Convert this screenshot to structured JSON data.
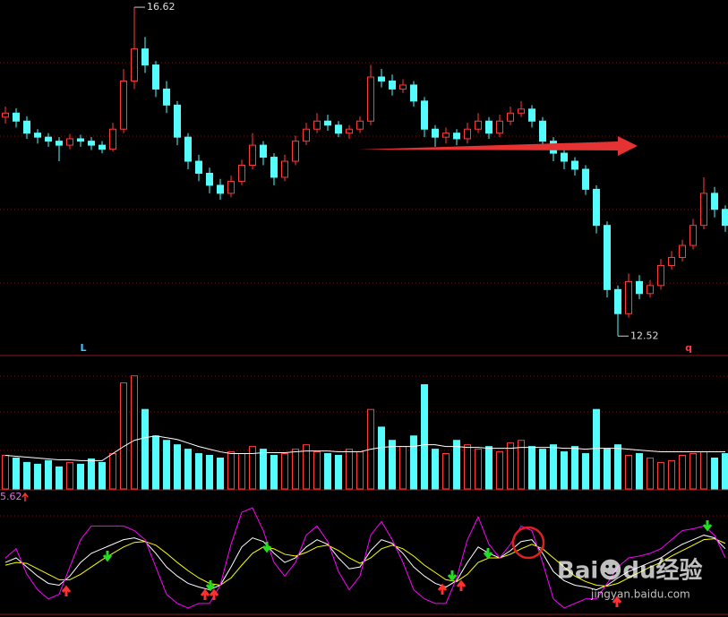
{
  "chart_data": [
    {
      "type": "candlestick",
      "open": [
        15.25,
        15.3,
        15.2,
        15.05,
        15.0,
        14.95,
        14.9,
        14.98,
        14.95,
        14.9,
        14.85,
        15.1,
        15.7,
        16.1,
        15.9,
        15.6,
        15.4,
        15.0,
        14.7,
        14.55,
        14.4,
        14.3,
        14.45,
        14.65,
        14.9,
        14.75,
        14.5,
        14.7,
        14.95,
        15.1,
        15.2,
        15.15,
        15.05,
        15.1,
        15.2,
        15.75,
        15.7,
        15.6,
        15.65,
        15.45,
        15.1,
        15.0,
        15.05,
        14.98,
        15.1,
        15.2,
        15.05,
        15.2,
        15.3,
        15.35,
        15.2,
        14.95,
        14.8,
        14.7,
        14.6,
        14.35,
        13.9,
        13.1,
        12.8,
        13.2,
        13.05,
        13.15,
        13.4,
        13.5,
        13.65,
        13.9,
        14.3,
        14.1
      ],
      "close": [
        15.3,
        15.2,
        15.05,
        15.0,
        14.95,
        14.9,
        14.98,
        14.95,
        14.9,
        14.85,
        15.1,
        15.7,
        16.1,
        15.9,
        15.6,
        15.4,
        15.0,
        14.7,
        14.55,
        14.4,
        14.3,
        14.45,
        14.65,
        14.9,
        14.75,
        14.5,
        14.7,
        14.95,
        15.1,
        15.2,
        15.15,
        15.05,
        15.1,
        15.2,
        15.75,
        15.7,
        15.6,
        15.65,
        15.45,
        15.1,
        15.0,
        15.05,
        14.98,
        15.1,
        15.2,
        15.05,
        15.2,
        15.3,
        15.35,
        15.2,
        14.95,
        14.8,
        14.7,
        14.6,
        14.35,
        13.9,
        13.1,
        12.8,
        13.2,
        13.05,
        13.15,
        13.4,
        13.5,
        13.65,
        13.9,
        14.3,
        14.1,
        13.9
      ],
      "high": [
        15.38,
        15.36,
        15.26,
        15.1,
        15.05,
        15.0,
        15.04,
        15.03,
        15.0,
        14.95,
        15.18,
        15.85,
        16.62,
        16.25,
        15.95,
        15.7,
        15.45,
        15.05,
        14.78,
        14.62,
        14.48,
        14.52,
        14.72,
        15.05,
        14.95,
        14.8,
        14.78,
        15.02,
        15.18,
        15.3,
        15.28,
        15.2,
        15.15,
        15.26,
        15.9,
        15.85,
        15.78,
        15.72,
        15.7,
        15.5,
        15.15,
        15.12,
        15.1,
        15.18,
        15.3,
        15.25,
        15.28,
        15.38,
        15.45,
        15.4,
        15.25,
        15.0,
        14.85,
        14.75,
        14.65,
        14.4,
        13.95,
        13.15,
        13.3,
        13.28,
        13.22,
        13.48,
        13.58,
        13.72,
        13.98,
        14.5,
        14.38,
        14.15
      ],
      "low": [
        15.17,
        15.12,
        14.98,
        14.92,
        14.88,
        14.7,
        14.85,
        14.88,
        14.84,
        14.8,
        14.82,
        15.05,
        15.6,
        15.8,
        15.5,
        15.3,
        14.9,
        14.6,
        14.45,
        14.3,
        14.22,
        14.25,
        14.4,
        14.6,
        14.65,
        14.4,
        14.45,
        14.65,
        14.9,
        15.05,
        15.08,
        15.0,
        14.98,
        15.05,
        15.15,
        15.62,
        15.52,
        15.55,
        15.38,
        15.0,
        14.88,
        14.92,
        14.9,
        14.92,
        15.05,
        14.98,
        15.0,
        15.15,
        15.25,
        15.12,
        14.88,
        14.7,
        14.6,
        14.52,
        14.28,
        13.8,
        13.0,
        12.52,
        12.75,
        12.98,
        13.0,
        13.1,
        13.35,
        13.45,
        13.6,
        13.85,
        14.0,
        13.82
      ],
      "up_color": "#ff3c3c",
      "down_color": "#54fcfc",
      "ylim": [
        12.3,
        16.71
      ],
      "annotations": [
        16.62,
        12.52
      ],
      "markers": [
        {
          "text": "L",
          "color": "#3fc8ff"
        },
        {
          "text": "q",
          "color": "#ff3c3c"
        }
      ]
    },
    {
      "type": "bar",
      "values": [
        38,
        35,
        30,
        28,
        32,
        25,
        30,
        28,
        34,
        30,
        40,
        120,
        128,
        90,
        60,
        55,
        50,
        45,
        40,
        38,
        35,
        42,
        40,
        48,
        45,
        38,
        40,
        45,
        50,
        42,
        40,
        38,
        45,
        42,
        90,
        70,
        55,
        48,
        60,
        118,
        45,
        40,
        55,
        50,
        45,
        48,
        42,
        52,
        55,
        48,
        45,
        50,
        42,
        48,
        40,
        90,
        45,
        50,
        38,
        40,
        35,
        30,
        32,
        38,
        40,
        42,
        35,
        40
      ],
      "average": [
        38,
        37,
        36,
        35,
        34,
        33,
        33,
        32,
        32,
        32,
        40,
        48,
        55,
        58,
        60,
        58,
        56,
        52,
        48,
        45,
        42,
        40,
        40,
        40,
        41,
        41,
        41,
        42,
        43,
        43,
        43,
        42,
        42,
        42,
        45,
        47,
        48,
        48,
        48,
        50,
        50,
        48,
        48,
        47,
        47,
        46,
        46,
        46,
        47,
        47,
        47,
        47,
        46,
        46,
        45,
        46,
        46,
        46,
        45,
        44,
        43,
        42,
        42,
        42,
        42,
        42,
        42,
        42
      ],
      "average_color": "#ffffff",
      "ylim": [
        0,
        150
      ]
    },
    {
      "type": "line",
      "label": "5.62",
      "series": [
        {
          "color": "#ffffff",
          "values": [
            45,
            50,
            40,
            30,
            22,
            20,
            30,
            45,
            55,
            60,
            65,
            70,
            72,
            68,
            55,
            40,
            30,
            22,
            18,
            15,
            20,
            40,
            62,
            72,
            68,
            55,
            45,
            50,
            62,
            70,
            65,
            50,
            38,
            40,
            58,
            70,
            66,
            55,
            40,
            30,
            22,
            18,
            25,
            45,
            62,
            55,
            50,
            58,
            68,
            70,
            55,
            35,
            25,
            20,
            18,
            15,
            20,
            28,
            35,
            40,
            45,
            50,
            58,
            65,
            70,
            75,
            72,
            60
          ]
        },
        {
          "color": "#ffff00",
          "values": [
            42,
            45,
            44,
            38,
            32,
            26,
            26,
            32,
            40,
            48,
            55,
            62,
            67,
            68,
            64,
            55,
            45,
            36,
            28,
            22,
            20,
            28,
            42,
            55,
            62,
            60,
            54,
            52,
            56,
            62,
            64,
            58,
            50,
            44,
            50,
            60,
            64,
            60,
            52,
            42,
            34,
            26,
            24,
            32,
            45,
            50,
            50,
            54,
            60,
            65,
            60,
            50,
            40,
            30,
            24,
            20,
            19,
            22,
            28,
            34,
            40,
            45,
            52,
            58,
            64,
            70,
            71,
            66
          ]
        },
        {
          "color": "#ff00ff",
          "values": [
            50,
            60,
            32,
            15,
            5,
            10,
            40,
            70,
            85,
            85,
            85,
            85,
            80,
            70,
            40,
            10,
            0,
            -5,
            0,
            0,
            20,
            65,
            100,
            105,
            80,
            45,
            30,
            45,
            75,
            85,
            68,
            35,
            15,
            30,
            75,
            90,
            70,
            45,
            15,
            5,
            0,
            0,
            28,
            70,
            95,
            65,
            50,
            65,
            85,
            80,
            45,
            5,
            -5,
            0,
            5,
            5,
            22,
            40,
            50,
            52,
            55,
            60,
            70,
            80,
            82,
            85,
            75,
            50
          ]
        }
      ],
      "ylim": [
        -10,
        110
      ]
    }
  ],
  "watermark": {
    "brand": "Bai☻du经验",
    "site": "jingyan.baidu.com"
  }
}
